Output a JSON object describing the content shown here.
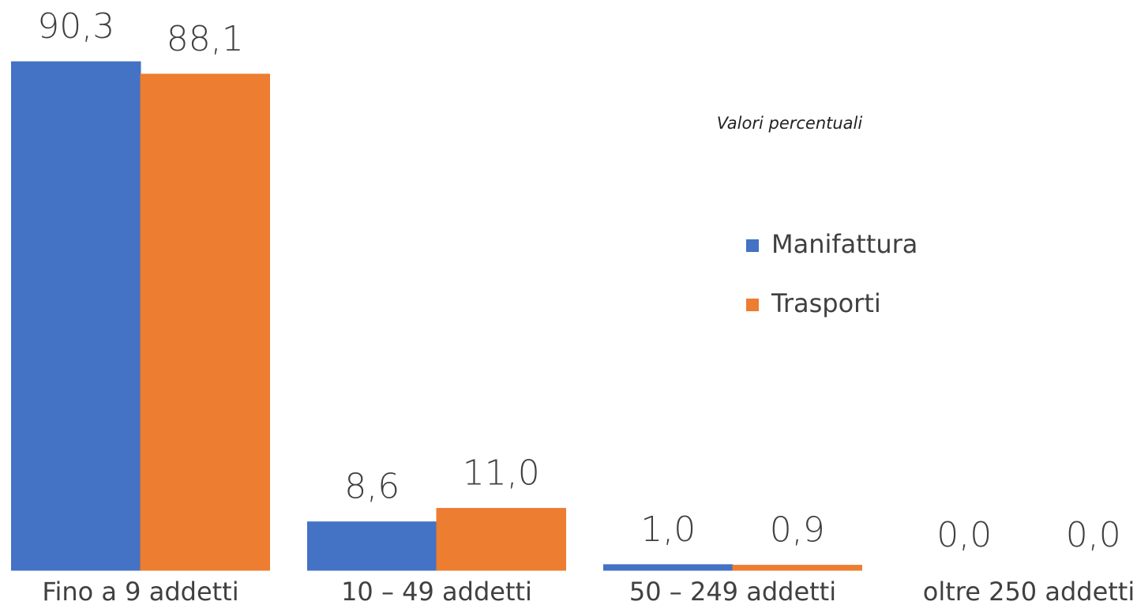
{
  "chart_data": {
    "type": "bar",
    "annotation": "Valori percentuali",
    "categories": [
      "Fino a 9 addetti",
      "10 – 49 addetti",
      "50 – 249 addetti",
      "oltre 250 addetti"
    ],
    "series": [
      {
        "name": "Manifattura",
        "color": "#4472c4",
        "values": [
          90.3,
          8.6,
          1.0,
          0.0
        ],
        "value_labels": [
          "90,3",
          "8,6",
          "1,0",
          "0,0"
        ]
      },
      {
        "name": "Trasporti",
        "color": "#ed7d31",
        "values": [
          88.1,
          11.0,
          0.9,
          0.0
        ],
        "value_labels": [
          "88,1",
          "11,0",
          "0,9",
          "0,0"
        ]
      }
    ],
    "ylim": [
      0,
      100
    ],
    "legend": "right"
  }
}
